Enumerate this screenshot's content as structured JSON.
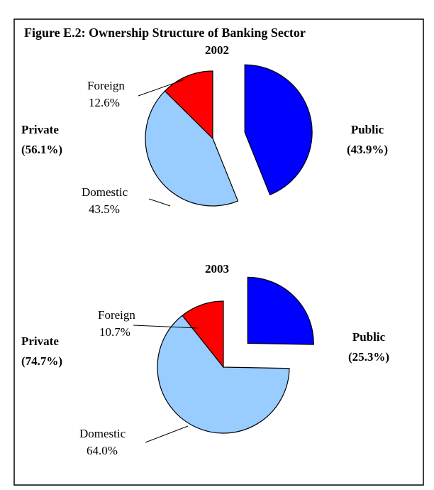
{
  "title": "Figure E.2: Ownership Structure of Banking Sector",
  "chart_data": [
    {
      "type": "pie",
      "title": "2002",
      "categories": [
        "Public",
        "Domestic",
        "Foreign"
      ],
      "values": [
        43.9,
        43.5,
        12.6
      ],
      "value_labels": [
        "(43.9%)",
        "43.5%",
        "12.6%"
      ],
      "colors": [
        "#0000ff",
        "#99ccff",
        "#ff0000"
      ],
      "exploded": "Public",
      "group": {
        "name": "Private",
        "value": 56.1,
        "value_label": "(56.1%)"
      }
    },
    {
      "type": "pie",
      "title": "2003",
      "categories": [
        "Public",
        "Domestic",
        "Foreign"
      ],
      "values": [
        25.3,
        64.0,
        10.7
      ],
      "value_labels": [
        "(25.3%)",
        "64.0%",
        "10.7%"
      ],
      "colors": [
        "#0000ff",
        "#99ccff",
        "#ff0000"
      ],
      "exploded": "Public",
      "group": {
        "name": "Private",
        "value": 74.7,
        "value_label": "(74.7%)"
      }
    }
  ]
}
